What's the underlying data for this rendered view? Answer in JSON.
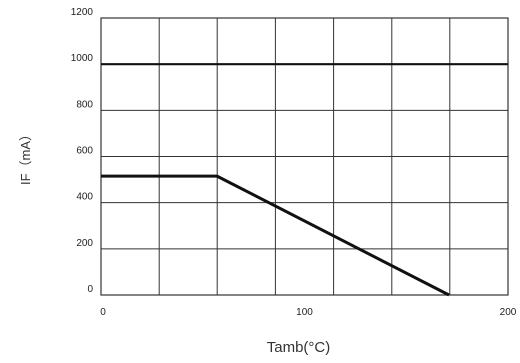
{
  "chart_data": {
    "type": "line",
    "title": "",
    "xlabel": "Tamb(°C)",
    "ylabel": "IF（mA）",
    "xlim": [
      0,
      200
    ],
    "ylim": [
      0,
      1200
    ],
    "x_ticks": [
      0,
      100,
      200
    ],
    "x_tick_labels": [
      "0",
      "100",
      "200"
    ],
    "y_ticks": [
      0,
      200,
      400,
      600,
      800,
      1000,
      1200
    ],
    "y_tick_labels": [
      "0",
      "200",
      "400",
      "600",
      "800",
      "1000",
      "1200"
    ],
    "x_grid_lines": [
      0,
      28.6,
      57.1,
      85.7,
      114.3,
      142.9,
      171.4,
      200
    ],
    "y_grid_lines": [
      0,
      200,
      400,
      600,
      800,
      1000,
      1200
    ],
    "grid": true,
    "legend": "none",
    "series": [
      {
        "values": [
          [
            0,
            515
          ],
          [
            57,
            515
          ],
          [
            171,
            0
          ]
        ]
      },
      {
        "values": [
          [
            0,
            1000
          ],
          [
            200,
            1000
          ]
        ]
      }
    ],
    "colors": {
      "grid": "#333333",
      "series": "#111111"
    }
  }
}
